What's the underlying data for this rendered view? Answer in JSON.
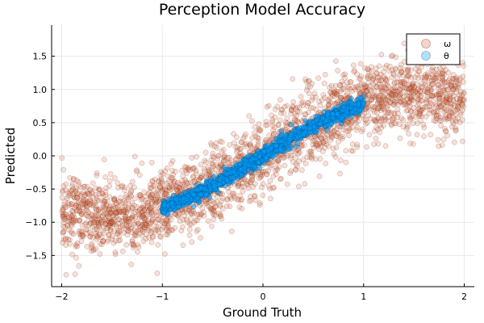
{
  "chart_data": {
    "type": "scatter",
    "title": "Perception Model Accuracy",
    "xlabel": "Ground Truth",
    "ylabel": "Predicted",
    "xlim": [
      -2.1,
      2.1
    ],
    "ylim": [
      -1.97,
      1.97
    ],
    "xticks": [
      -2,
      -1,
      0,
      1,
      2
    ],
    "xtick_labels": [
      "−2",
      "−1",
      "0",
      "1",
      "2"
    ],
    "yticks": [
      -1.5,
      -1.0,
      -0.5,
      0.0,
      0.5,
      1.0,
      1.5
    ],
    "ytick_labels": [
      "−1.5",
      "−1.0",
      "−0.5",
      "0.0",
      "0.5",
      "1.0",
      "1.5"
    ],
    "grid": true,
    "legend_position": "top-right",
    "series": [
      {
        "name": "ω",
        "color": "#e26f46",
        "x_range": [
          -2,
          2
        ],
        "trend": "y ≈ 0.9·sin(x)",
        "sample": [
          {
            "x": -2.0,
            "y": -1.55
          },
          {
            "x": -1.5,
            "y": -1.35
          },
          {
            "x": -1.0,
            "y": -0.95
          },
          {
            "x": -0.5,
            "y": -0.45
          },
          {
            "x": 0.0,
            "y": 0.0
          },
          {
            "x": 0.5,
            "y": 0.45
          },
          {
            "x": 1.0,
            "y": 0.85
          },
          {
            "x": 1.5,
            "y": 1.3
          },
          {
            "x": 2.0,
            "y": 1.5
          }
        ]
      },
      {
        "name": "θ",
        "color": "#009af9",
        "x_range": [
          -1,
          1
        ],
        "trend": "y ≈ 0.9·sin(x), tight band",
        "sample": [
          {
            "x": -1.0,
            "y": -0.85
          },
          {
            "x": -0.5,
            "y": -0.45
          },
          {
            "x": 0.0,
            "y": 0.0
          },
          {
            "x": 0.5,
            "y": 0.45
          },
          {
            "x": 1.0,
            "y": 0.85
          }
        ]
      }
    ]
  }
}
